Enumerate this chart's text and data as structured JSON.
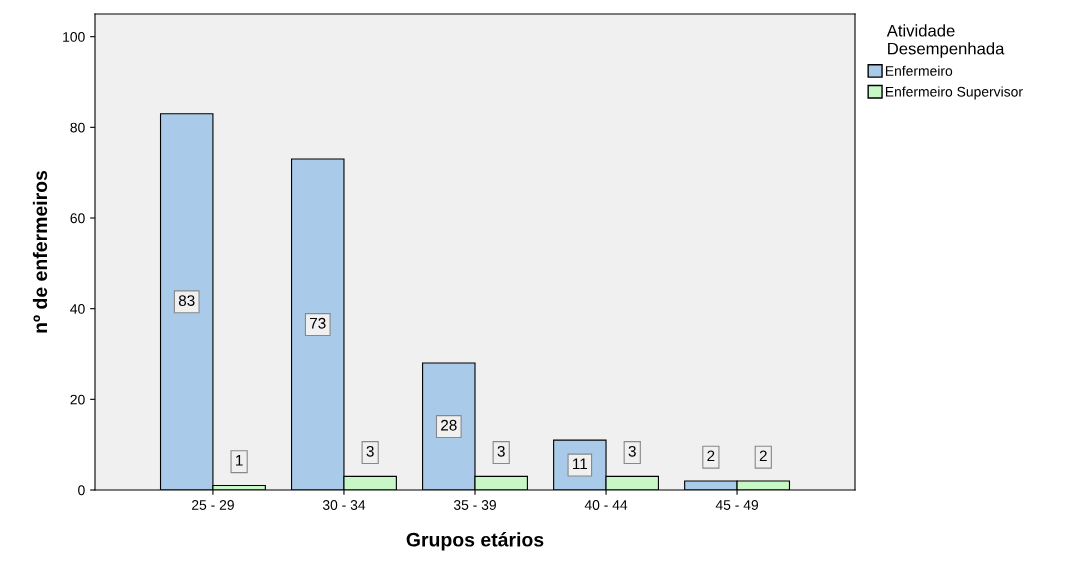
{
  "chart_data": {
    "type": "bar",
    "xlabel": "Grupos etários",
    "ylabel": "nº de enfermeiros",
    "legend_title": "Atividade\nDesempenhada",
    "categories": [
      "25 - 29",
      "30 - 34",
      "35 - 39",
      "40 - 44",
      "45 - 49"
    ],
    "series": [
      {
        "name": "Enfermeiro",
        "color": "#a9cbe9",
        "values": [
          83,
          73,
          28,
          11,
          2
        ]
      },
      {
        "name": "Enfermeiro Supervisor",
        "color": "#c6f7c4",
        "values": [
          1,
          3,
          3,
          3,
          2
        ]
      }
    ],
    "ylim": [
      0,
      105
    ],
    "yticks": [
      0,
      20,
      40,
      60,
      80,
      100
    ],
    "data_labels": true,
    "legend": "right",
    "grid": false
  }
}
